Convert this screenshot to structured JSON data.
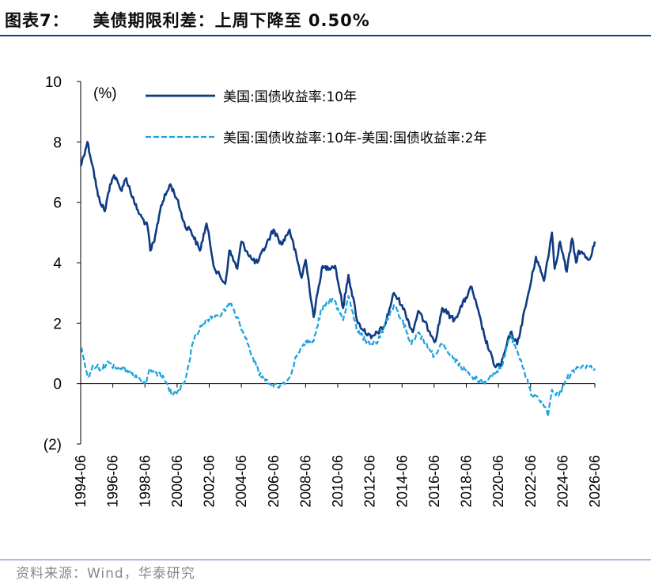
{
  "header": {
    "figure_label": "图表7：",
    "title": "美债期限利差：上周下降至 0.50%"
  },
  "source": "资料来源：Wind，华泰研究",
  "colors": {
    "series_10y": "#0f3b82",
    "series_spread": "#1aa3dd",
    "rule": "#1a3f8f"
  },
  "chart_data": {
    "type": "line",
    "unit_label": "(%)",
    "ylim": [
      -2,
      10
    ],
    "yticks": [
      -2,
      0,
      2,
      4,
      6,
      8,
      10
    ],
    "ytick_labels": [
      "(2)",
      "0",
      "2",
      "4",
      "6",
      "8",
      "10"
    ],
    "xlim": [
      "1994-06",
      "2026-06"
    ],
    "xtick_labels": [
      "1994-06",
      "1996-06",
      "1998-06",
      "2000-06",
      "2002-06",
      "2004-06",
      "2006-06",
      "2008-06",
      "2010-06",
      "2012-06",
      "2014-06",
      "2016-06",
      "2018-06",
      "2020-06",
      "2022-06",
      "2024-06",
      "2026-06"
    ],
    "legend_position": "top",
    "grid": false,
    "series": [
      {
        "name": "美国:国债收益率:10年",
        "style": "solid",
        "points": [
          [
            "1994-06",
            7.2
          ],
          [
            "1994-11",
            8.0
          ],
          [
            "1995-03",
            7.2
          ],
          [
            "1995-07",
            6.2
          ],
          [
            "1995-12",
            5.7
          ],
          [
            "1996-04",
            6.6
          ],
          [
            "1996-07",
            6.9
          ],
          [
            "1996-12",
            6.4
          ],
          [
            "1997-04",
            6.8
          ],
          [
            "1997-10",
            6.0
          ],
          [
            "1998-02",
            5.6
          ],
          [
            "1998-08",
            5.2
          ],
          [
            "1998-10",
            4.4
          ],
          [
            "1999-01",
            4.7
          ],
          [
            "1999-06",
            5.9
          ],
          [
            "2000-01",
            6.6
          ],
          [
            "2000-06",
            6.1
          ],
          [
            "2000-12",
            5.2
          ],
          [
            "2001-04",
            5.1
          ],
          [
            "2001-11",
            4.4
          ],
          [
            "2002-04",
            5.3
          ],
          [
            "2002-10",
            3.8
          ],
          [
            "2003-06",
            3.3
          ],
          [
            "2003-09",
            4.4
          ],
          [
            "2004-03",
            3.8
          ],
          [
            "2004-06",
            4.7
          ],
          [
            "2005-02",
            4.1
          ],
          [
            "2005-06",
            4.0
          ],
          [
            "2006-06",
            5.1
          ],
          [
            "2006-12",
            4.6
          ],
          [
            "2007-06",
            5.1
          ],
          [
            "2008-03",
            3.5
          ],
          [
            "2008-06",
            4.1
          ],
          [
            "2008-12",
            2.2
          ],
          [
            "2009-06",
            3.8
          ],
          [
            "2010-04",
            3.9
          ],
          [
            "2010-10",
            2.5
          ],
          [
            "2011-02",
            3.6
          ],
          [
            "2011-09",
            2.0
          ],
          [
            "2012-07",
            1.5
          ],
          [
            "2013-05",
            1.9
          ],
          [
            "2013-12",
            3.0
          ],
          [
            "2014-06",
            2.6
          ],
          [
            "2015-02",
            1.7
          ],
          [
            "2015-06",
            2.4
          ],
          [
            "2016-07",
            1.4
          ],
          [
            "2016-12",
            2.5
          ],
          [
            "2017-09",
            2.1
          ],
          [
            "2018-10",
            3.2
          ],
          [
            "2019-08",
            1.5
          ],
          [
            "2020-03",
            0.6
          ],
          [
            "2020-08",
            0.6
          ],
          [
            "2021-03",
            1.7
          ],
          [
            "2021-08",
            1.3
          ],
          [
            "2022-06",
            3.3
          ],
          [
            "2022-10",
            4.2
          ],
          [
            "2023-04",
            3.4
          ],
          [
            "2023-10",
            5.0
          ],
          [
            "2023-12",
            3.8
          ],
          [
            "2024-04",
            4.7
          ],
          [
            "2024-09",
            3.7
          ],
          [
            "2025-01",
            4.8
          ],
          [
            "2025-04",
            4.0
          ],
          [
            "2025-06",
            4.4
          ],
          [
            "2026-02",
            4.1
          ],
          [
            "2026-06",
            4.7
          ]
        ]
      },
      {
        "name": "美国:国债收益率:10年-美国:国债收益率:2年",
        "style": "dashed",
        "points": [
          [
            "1994-06",
            1.2
          ],
          [
            "1994-12",
            0.2
          ],
          [
            "1995-03",
            0.6
          ],
          [
            "1995-09",
            0.5
          ],
          [
            "1996-03",
            0.7
          ],
          [
            "1996-09",
            0.5
          ],
          [
            "1997-03",
            0.5
          ],
          [
            "1997-09",
            0.3
          ],
          [
            "1998-03",
            0.1
          ],
          [
            "1998-06",
            0.0
          ],
          [
            "1998-10",
            0.5
          ],
          [
            "1999-04",
            0.3
          ],
          [
            "1999-08",
            0.2
          ],
          [
            "2000-03",
            -0.4
          ],
          [
            "2000-06",
            -0.3
          ],
          [
            "2000-12",
            0.1
          ],
          [
            "2001-06",
            1.4
          ],
          [
            "2001-12",
            1.9
          ],
          [
            "2002-04",
            2.1
          ],
          [
            "2002-10",
            2.2
          ],
          [
            "2003-06",
            2.4
          ],
          [
            "2003-09",
            2.7
          ],
          [
            "2004-03",
            2.2
          ],
          [
            "2004-09",
            1.5
          ],
          [
            "2005-03",
            0.8
          ],
          [
            "2005-09",
            0.2
          ],
          [
            "2006-03",
            0.0
          ],
          [
            "2006-09",
            -0.1
          ],
          [
            "2007-03",
            0.0
          ],
          [
            "2007-06",
            0.2
          ],
          [
            "2007-12",
            1.0
          ],
          [
            "2008-06",
            1.4
          ],
          [
            "2008-12",
            1.4
          ],
          [
            "2009-06",
            2.5
          ],
          [
            "2010-02",
            2.8
          ],
          [
            "2010-06",
            2.5
          ],
          [
            "2010-10",
            2.1
          ],
          [
            "2011-02",
            2.9
          ],
          [
            "2011-09",
            1.7
          ],
          [
            "2012-06",
            1.3
          ],
          [
            "2012-12",
            1.4
          ],
          [
            "2013-06",
            2.0
          ],
          [
            "2013-12",
            2.6
          ],
          [
            "2014-06",
            2.1
          ],
          [
            "2015-01",
            1.3
          ],
          [
            "2015-06",
            1.7
          ],
          [
            "2016-06",
            0.9
          ],
          [
            "2016-12",
            1.3
          ],
          [
            "2017-06",
            0.9
          ],
          [
            "2018-06",
            0.4
          ],
          [
            "2018-12",
            0.2
          ],
          [
            "2019-08",
            0.0
          ],
          [
            "2020-03",
            0.4
          ],
          [
            "2020-08",
            0.5
          ],
          [
            "2021-03",
            1.6
          ],
          [
            "2021-08",
            1.1
          ],
          [
            "2022-03",
            0.2
          ],
          [
            "2022-07",
            -0.4
          ],
          [
            "2023-03",
            -0.6
          ],
          [
            "2023-07",
            -1.1
          ],
          [
            "2023-10",
            -0.2
          ],
          [
            "2024-03",
            -0.4
          ],
          [
            "2024-08",
            0.1
          ],
          [
            "2024-12",
            0.3
          ],
          [
            "2025-04",
            0.5
          ],
          [
            "2025-09",
            0.6
          ],
          [
            "2026-03",
            0.6
          ],
          [
            "2026-06",
            0.5
          ]
        ]
      }
    ]
  }
}
